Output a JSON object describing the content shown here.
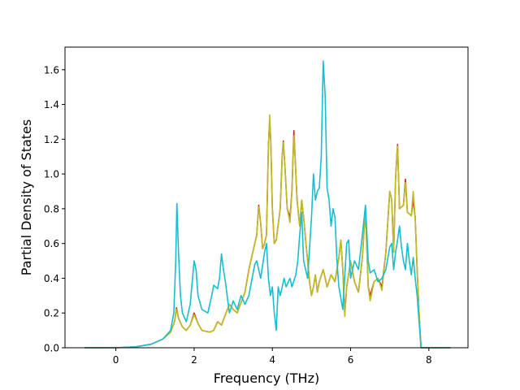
{
  "chart_data": {
    "type": "line",
    "title": "",
    "xlabel": "Frequency (THz)",
    "ylabel": "Partial Density of States",
    "xlim": [
      -1.3,
      9.0
    ],
    "ylim": [
      0.0,
      1.73
    ],
    "xticks": [
      0,
      2,
      4,
      6,
      8
    ],
    "yticks": [
      0.0,
      0.2,
      0.4,
      0.6,
      0.8,
      1.0,
      1.2,
      1.4,
      1.6
    ],
    "grid": false,
    "legend": "none",
    "series": [
      {
        "color": "#d62728",
        "points": [
          [
            -0.8,
            0
          ],
          [
            0,
            0
          ],
          [
            0.5,
            0.005
          ],
          [
            0.9,
            0.02
          ],
          [
            1.2,
            0.05
          ],
          [
            1.4,
            0.09
          ],
          [
            1.5,
            0.15
          ],
          [
            1.55,
            0.23
          ],
          [
            1.6,
            0.17
          ],
          [
            1.7,
            0.12
          ],
          [
            1.8,
            0.1
          ],
          [
            1.9,
            0.13
          ],
          [
            2.0,
            0.2
          ],
          [
            2.1,
            0.14
          ],
          [
            2.2,
            0.1
          ],
          [
            2.4,
            0.09
          ],
          [
            2.5,
            0.1
          ],
          [
            2.6,
            0.15
          ],
          [
            2.7,
            0.13
          ],
          [
            2.8,
            0.19
          ],
          [
            2.9,
            0.25
          ],
          [
            3.0,
            0.22
          ],
          [
            3.1,
            0.2
          ],
          [
            3.2,
            0.26
          ],
          [
            3.3,
            0.32
          ],
          [
            3.4,
            0.45
          ],
          [
            3.5,
            0.55
          ],
          [
            3.6,
            0.65
          ],
          [
            3.65,
            0.82
          ],
          [
            3.7,
            0.72
          ],
          [
            3.75,
            0.57
          ],
          [
            3.8,
            0.6
          ],
          [
            3.85,
            0.65
          ],
          [
            3.9,
            1.17
          ],
          [
            3.93,
            1.31
          ],
          [
            3.96,
            1.18
          ],
          [
            4.0,
            0.8
          ],
          [
            4.05,
            0.6
          ],
          [
            4.1,
            0.62
          ],
          [
            4.2,
            0.8
          ],
          [
            4.25,
            1.1
          ],
          [
            4.28,
            1.19
          ],
          [
            4.32,
            1.05
          ],
          [
            4.38,
            0.8
          ],
          [
            4.45,
            0.75
          ],
          [
            4.5,
            0.9
          ],
          [
            4.55,
            1.25
          ],
          [
            4.58,
            1.1
          ],
          [
            4.63,
            0.85
          ],
          [
            4.7,
            0.7
          ],
          [
            4.75,
            0.85
          ],
          [
            4.8,
            0.75
          ],
          [
            4.85,
            0.62
          ],
          [
            4.9,
            0.5
          ],
          [
            4.95,
            0.38
          ],
          [
            5.0,
            0.3
          ],
          [
            5.05,
            0.35
          ],
          [
            5.1,
            0.42
          ],
          [
            5.15,
            0.32
          ],
          [
            5.2,
            0.38
          ],
          [
            5.3,
            0.45
          ],
          [
            5.4,
            0.35
          ],
          [
            5.5,
            0.42
          ],
          [
            5.6,
            0.38
          ],
          [
            5.7,
            0.52
          ],
          [
            5.75,
            0.62
          ],
          [
            5.8,
            0.45
          ],
          [
            5.85,
            0.2
          ],
          [
            5.9,
            0.35
          ],
          [
            6.0,
            0.5
          ],
          [
            6.1,
            0.38
          ],
          [
            6.2,
            0.32
          ],
          [
            6.3,
            0.52
          ],
          [
            6.38,
            0.8
          ],
          [
            6.45,
            0.35
          ],
          [
            6.5,
            0.3
          ],
          [
            6.6,
            0.38
          ],
          [
            6.7,
            0.4
          ],
          [
            6.8,
            0.35
          ],
          [
            6.9,
            0.55
          ],
          [
            7.0,
            0.9
          ],
          [
            7.05,
            0.85
          ],
          [
            7.1,
            0.55
          ],
          [
            7.15,
            0.98
          ],
          [
            7.2,
            1.17
          ],
          [
            7.25,
            0.8
          ],
          [
            7.35,
            0.82
          ],
          [
            7.4,
            0.97
          ],
          [
            7.45,
            0.78
          ],
          [
            7.55,
            0.76
          ],
          [
            7.6,
            0.85
          ],
          [
            7.65,
            0.75
          ],
          [
            7.7,
            0.45
          ],
          [
            7.75,
            0.2
          ],
          [
            7.8,
            0.0
          ],
          [
            8.55,
            0.0
          ]
        ]
      },
      {
        "color": "#bcbd22",
        "points": [
          [
            -0.8,
            0
          ],
          [
            0,
            0
          ],
          [
            0.5,
            0.005
          ],
          [
            0.9,
            0.02
          ],
          [
            1.2,
            0.05
          ],
          [
            1.4,
            0.09
          ],
          [
            1.5,
            0.15
          ],
          [
            1.55,
            0.22
          ],
          [
            1.6,
            0.17
          ],
          [
            1.7,
            0.12
          ],
          [
            1.8,
            0.1
          ],
          [
            1.9,
            0.13
          ],
          [
            2.0,
            0.19
          ],
          [
            2.1,
            0.14
          ],
          [
            2.2,
            0.1
          ],
          [
            2.4,
            0.09
          ],
          [
            2.5,
            0.1
          ],
          [
            2.6,
            0.15
          ],
          [
            2.7,
            0.13
          ],
          [
            2.8,
            0.19
          ],
          [
            2.9,
            0.25
          ],
          [
            3.0,
            0.22
          ],
          [
            3.1,
            0.2
          ],
          [
            3.2,
            0.26
          ],
          [
            3.3,
            0.32
          ],
          [
            3.4,
            0.45
          ],
          [
            3.5,
            0.55
          ],
          [
            3.6,
            0.65
          ],
          [
            3.65,
            0.81
          ],
          [
            3.7,
            0.72
          ],
          [
            3.75,
            0.57
          ],
          [
            3.8,
            0.6
          ],
          [
            3.85,
            0.65
          ],
          [
            3.9,
            1.16
          ],
          [
            3.93,
            1.34
          ],
          [
            3.96,
            1.18
          ],
          [
            4.0,
            0.8
          ],
          [
            4.05,
            0.6
          ],
          [
            4.1,
            0.62
          ],
          [
            4.2,
            0.8
          ],
          [
            4.25,
            1.1
          ],
          [
            4.28,
            1.18
          ],
          [
            4.32,
            1.05
          ],
          [
            4.38,
            0.8
          ],
          [
            4.45,
            0.72
          ],
          [
            4.5,
            0.9
          ],
          [
            4.55,
            1.22
          ],
          [
            4.58,
            1.1
          ],
          [
            4.63,
            0.85
          ],
          [
            4.7,
            0.7
          ],
          [
            4.75,
            0.85
          ],
          [
            4.8,
            0.75
          ],
          [
            4.85,
            0.62
          ],
          [
            4.9,
            0.5
          ],
          [
            4.95,
            0.38
          ],
          [
            5.0,
            0.3
          ],
          [
            5.05,
            0.35
          ],
          [
            5.1,
            0.42
          ],
          [
            5.15,
            0.32
          ],
          [
            5.2,
            0.38
          ],
          [
            5.3,
            0.45
          ],
          [
            5.4,
            0.35
          ],
          [
            5.5,
            0.42
          ],
          [
            5.6,
            0.38
          ],
          [
            5.7,
            0.52
          ],
          [
            5.75,
            0.62
          ],
          [
            5.8,
            0.45
          ],
          [
            5.85,
            0.18
          ],
          [
            5.9,
            0.35
          ],
          [
            6.0,
            0.5
          ],
          [
            6.1,
            0.38
          ],
          [
            6.2,
            0.32
          ],
          [
            6.3,
            0.52
          ],
          [
            6.38,
            0.8
          ],
          [
            6.45,
            0.35
          ],
          [
            6.5,
            0.27
          ],
          [
            6.6,
            0.38
          ],
          [
            6.7,
            0.4
          ],
          [
            6.8,
            0.33
          ],
          [
            6.9,
            0.55
          ],
          [
            7.0,
            0.9
          ],
          [
            7.05,
            0.85
          ],
          [
            7.1,
            0.55
          ],
          [
            7.15,
            0.98
          ],
          [
            7.2,
            1.16
          ],
          [
            7.25,
            0.8
          ],
          [
            7.35,
            0.82
          ],
          [
            7.4,
            0.95
          ],
          [
            7.45,
            0.78
          ],
          [
            7.55,
            0.76
          ],
          [
            7.6,
            0.9
          ],
          [
            7.65,
            0.75
          ],
          [
            7.7,
            0.45
          ],
          [
            7.75,
            0.2
          ],
          [
            7.8,
            0.0
          ],
          [
            8.55,
            0.0
          ]
        ]
      },
      {
        "color": "#17becf",
        "points": [
          [
            -0.8,
            0
          ],
          [
            0,
            0
          ],
          [
            0.5,
            0.005
          ],
          [
            0.9,
            0.02
          ],
          [
            1.2,
            0.05
          ],
          [
            1.4,
            0.1
          ],
          [
            1.48,
            0.2
          ],
          [
            1.53,
            0.5
          ],
          [
            1.56,
            0.83
          ],
          [
            1.6,
            0.55
          ],
          [
            1.65,
            0.3
          ],
          [
            1.7,
            0.2
          ],
          [
            1.8,
            0.15
          ],
          [
            1.9,
            0.25
          ],
          [
            2.0,
            0.5
          ],
          [
            2.05,
            0.45
          ],
          [
            2.1,
            0.3
          ],
          [
            2.2,
            0.22
          ],
          [
            2.35,
            0.2
          ],
          [
            2.45,
            0.3
          ],
          [
            2.5,
            0.36
          ],
          [
            2.6,
            0.34
          ],
          [
            2.65,
            0.4
          ],
          [
            2.7,
            0.54
          ],
          [
            2.75,
            0.45
          ],
          [
            2.8,
            0.38
          ],
          [
            2.9,
            0.2
          ],
          [
            3.0,
            0.27
          ],
          [
            3.1,
            0.22
          ],
          [
            3.2,
            0.3
          ],
          [
            3.3,
            0.25
          ],
          [
            3.4,
            0.3
          ],
          [
            3.5,
            0.42
          ],
          [
            3.55,
            0.48
          ],
          [
            3.6,
            0.5
          ],
          [
            3.65,
            0.45
          ],
          [
            3.7,
            0.4
          ],
          [
            3.8,
            0.55
          ],
          [
            3.85,
            0.6
          ],
          [
            3.9,
            0.4
          ],
          [
            3.95,
            0.3
          ],
          [
            4.0,
            0.35
          ],
          [
            4.05,
            0.2
          ],
          [
            4.1,
            0.1
          ],
          [
            4.15,
            0.35
          ],
          [
            4.2,
            0.3
          ],
          [
            4.3,
            0.4
          ],
          [
            4.35,
            0.35
          ],
          [
            4.45,
            0.4
          ],
          [
            4.5,
            0.35
          ],
          [
            4.6,
            0.42
          ],
          [
            4.65,
            0.5
          ],
          [
            4.7,
            0.65
          ],
          [
            4.75,
            0.78
          ],
          [
            4.8,
            0.5
          ],
          [
            4.9,
            0.4
          ],
          [
            5.0,
            0.75
          ],
          [
            5.05,
            1.0
          ],
          [
            5.1,
            0.85
          ],
          [
            5.15,
            0.9
          ],
          [
            5.2,
            0.92
          ],
          [
            5.25,
            1.1
          ],
          [
            5.3,
            1.65
          ],
          [
            5.35,
            1.45
          ],
          [
            5.4,
            0.92
          ],
          [
            5.45,
            0.85
          ],
          [
            5.5,
            0.7
          ],
          [
            5.55,
            0.8
          ],
          [
            5.6,
            0.75
          ],
          [
            5.65,
            0.5
          ],
          [
            5.7,
            0.35
          ],
          [
            5.8,
            0.22
          ],
          [
            5.9,
            0.6
          ],
          [
            5.95,
            0.62
          ],
          [
            6.0,
            0.4
          ],
          [
            6.1,
            0.5
          ],
          [
            6.2,
            0.45
          ],
          [
            6.3,
            0.65
          ],
          [
            6.38,
            0.82
          ],
          [
            6.45,
            0.5
          ],
          [
            6.5,
            0.43
          ],
          [
            6.6,
            0.45
          ],
          [
            6.7,
            0.38
          ],
          [
            6.8,
            0.4
          ],
          [
            6.9,
            0.45
          ],
          [
            7.0,
            0.58
          ],
          [
            7.05,
            0.6
          ],
          [
            7.1,
            0.45
          ],
          [
            7.15,
            0.55
          ],
          [
            7.2,
            0.62
          ],
          [
            7.25,
            0.7
          ],
          [
            7.3,
            0.58
          ],
          [
            7.35,
            0.5
          ],
          [
            7.4,
            0.45
          ],
          [
            7.45,
            0.6
          ],
          [
            7.5,
            0.5
          ],
          [
            7.55,
            0.42
          ],
          [
            7.6,
            0.52
          ],
          [
            7.65,
            0.4
          ],
          [
            7.7,
            0.3
          ],
          [
            7.75,
            0.15
          ],
          [
            7.8,
            0.0
          ],
          [
            8.55,
            0.0
          ]
        ]
      }
    ]
  }
}
